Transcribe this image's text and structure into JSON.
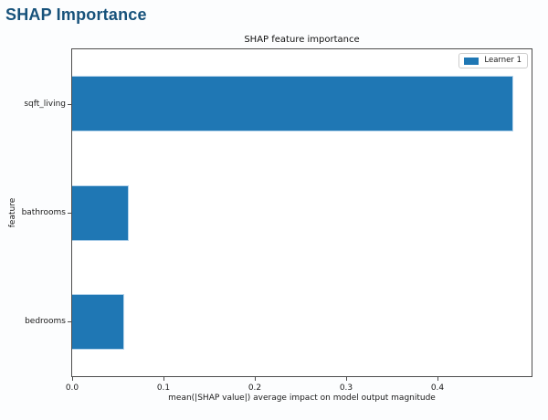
{
  "header": {
    "title": "SHAP Importance"
  },
  "chart_data": {
    "type": "bar",
    "orientation": "horizontal",
    "title": "SHAP feature importance",
    "xlabel": "mean(|SHAP value|) average impact on model output magnitude",
    "ylabel": "feature",
    "categories": [
      "sqft_living",
      "bathrooms",
      "bedrooms"
    ],
    "values": [
      0.483,
      0.062,
      0.057
    ],
    "xlim": [
      0,
      0.503
    ],
    "xticks": [
      0.0,
      0.1,
      0.2,
      0.3,
      0.4
    ],
    "xtick_labels": [
      "0.0",
      "0.1",
      "0.2",
      "0.3",
      "0.4"
    ],
    "grid": false,
    "legend": {
      "position": "upper right",
      "entries": [
        {
          "label": "Learner 1",
          "color": "#1f77b4"
        }
      ]
    },
    "bar_color": "#1f77b4",
    "bar_edge_color": "#b5d4ec",
    "header_accent_color": "#17527b"
  }
}
